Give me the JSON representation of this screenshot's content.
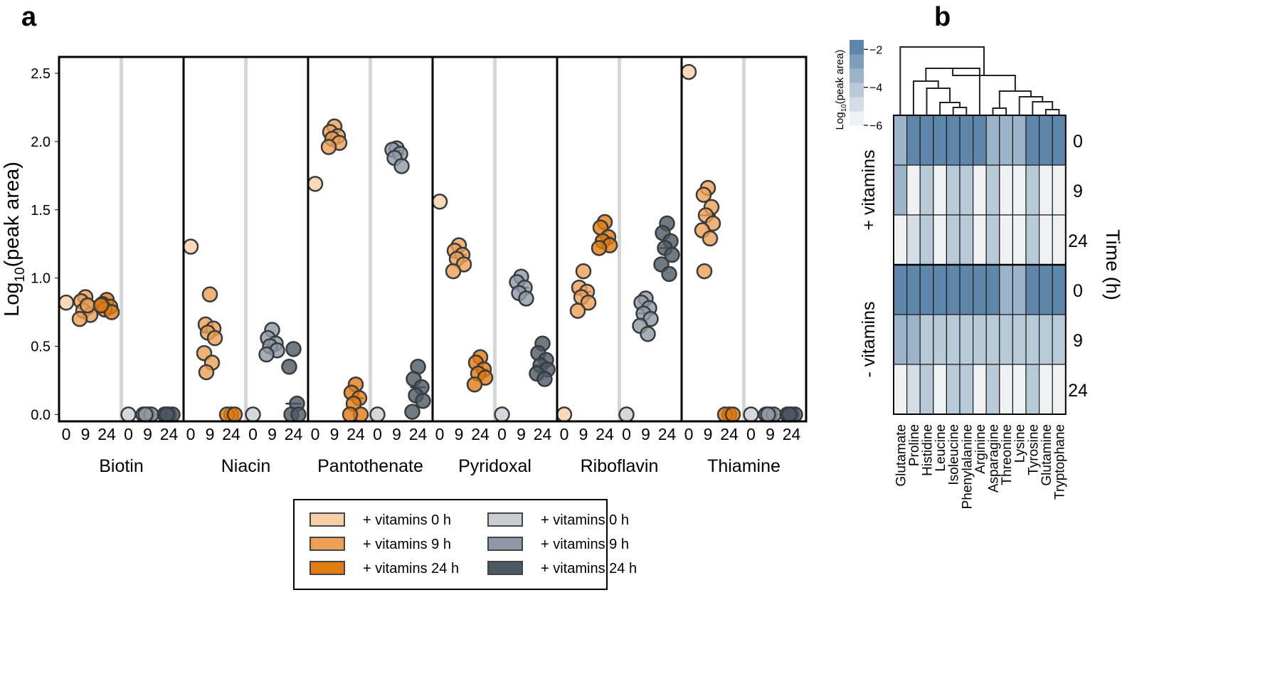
{
  "panels": {
    "a": "a",
    "b": "b"
  },
  "chart_data": [
    {
      "type": "scatter",
      "title": "",
      "ylabel_main": "Log",
      "ylabel_sub": "10",
      "ylabel_rest": "(peak area)",
      "ylim": [
        -0.05,
        2.62
      ],
      "yticks": [
        0.0,
        0.5,
        1.0,
        1.5,
        2.0,
        2.5
      ],
      "ytick_labels": [
        "0.0",
        "0.5",
        "1.0",
        "1.5",
        "2.0",
        "2.5"
      ],
      "time_labels": [
        "0",
        "9",
        "24"
      ],
      "groups": [
        "+ vitamins",
        "- vitamins"
      ],
      "colors": {
        "plus_0": "#f5cfa6",
        "plus_9": "#eca055",
        "plus_24": "#e07b12",
        "minus_0": "#c9ced3",
        "minus_9": "#8d9aa6",
        "minus_24": "#4b5967"
      },
      "legend": {
        "position": "bottom-center",
        "entries": [
          {
            "label": "+ vitamins 0 h",
            "color_key": "plus_0"
          },
          {
            "label": "+ vitamins 9 h",
            "color_key": "plus_9"
          },
          {
            "label": "+ vitamins 24 h",
            "color_key": "plus_24"
          },
          {
            "label": "+ vitamins 0 h",
            "color_key": "minus_0"
          },
          {
            "label": "+ vitamins 9 h",
            "color_key": "minus_9"
          },
          {
            "label": "+ vitamins 24 h",
            "color_key": "minus_24"
          }
        ]
      },
      "facets": [
        {
          "name": "Biotin",
          "plus": {
            "t0": [
              0.82
            ],
            "t9": [
              0.86,
              0.83,
              0.79,
              0.76,
              0.73,
              0.7,
              0.8
            ],
            "t24": [
              0.84,
              0.81,
              0.79,
              0.77,
              0.75,
              0.8
            ]
          },
          "minus": {
            "t0": [
              0.0
            ],
            "t9": [
              0.0,
              0.0,
              0.0,
              0.0
            ],
            "t24": [
              0.0,
              0.0,
              0.0,
              0.0
            ]
          }
        },
        {
          "name": "Niacin",
          "plus": {
            "t0": [
              1.23
            ],
            "t9": [
              0.88,
              0.66,
              0.63,
              0.6,
              0.56,
              0.45,
              0.38,
              0.31
            ],
            "t24": [
              0.0,
              0.0,
              0.0
            ]
          },
          "minus": {
            "t0": [
              0.0
            ],
            "t9": [
              0.62,
              0.56,
              0.52,
              0.5,
              0.47,
              0.44
            ],
            "t24": [
              0.48,
              0.35,
              0.08,
              0.0,
              0.0
            ]
          }
        },
        {
          "name": "Pantothenate",
          "plus": {
            "t0": [
              1.69
            ],
            "t9": [
              2.11,
              2.07,
              2.04,
              2.02,
              1.99,
              1.96
            ],
            "t24": [
              0.22,
              0.16,
              0.12,
              0.08,
              0.0,
              0.0
            ]
          },
          "minus": {
            "t0": [
              0.0
            ],
            "t9": [
              1.95,
              1.94,
              1.91,
              1.88,
              1.82
            ],
            "t24": [
              0.35,
              0.26,
              0.2,
              0.14,
              0.1,
              0.02
            ]
          }
        },
        {
          "name": "Pyridoxal",
          "plus": {
            "t0": [
              1.56
            ],
            "t9": [
              1.24,
              1.2,
              1.17,
              1.14,
              1.1,
              1.05
            ],
            "t24": [
              0.42,
              0.38,
              0.33,
              0.3,
              0.27,
              0.22
            ]
          },
          "minus": {
            "t0": [
              0.0
            ],
            "t9": [
              1.01,
              0.97,
              0.93,
              0.89,
              0.85
            ],
            "t24": [
              0.52,
              0.45,
              0.4,
              0.36,
              0.33,
              0.3,
              0.26
            ]
          }
        },
        {
          "name": "Riboflavin",
          "plus": {
            "t0": [
              0.0
            ],
            "t9": [
              1.05,
              0.93,
              0.9,
              0.86,
              0.82,
              0.76
            ],
            "t24": [
              1.41,
              1.37,
              1.3,
              1.27,
              1.24,
              1.22
            ]
          },
          "minus": {
            "t0": [
              0.0
            ],
            "t9": [
              0.85,
              0.82,
              0.78,
              0.74,
              0.7,
              0.65,
              0.59
            ],
            "t24": [
              1.4,
              1.33,
              1.27,
              1.22,
              1.17,
              1.1,
              1.03
            ]
          }
        },
        {
          "name": "Thiamine",
          "plus": {
            "t0": [
              2.51
            ],
            "t9": [
              1.66,
              1.61,
              1.52,
              1.46,
              1.4,
              1.35,
              1.29,
              1.05
            ],
            "t24": [
              0.0,
              0.0,
              0.0
            ]
          },
          "minus": {
            "t0": [
              0.0
            ],
            "t9": [
              0.0,
              0.0,
              0.0,
              0.0
            ],
            "t24": [
              0.0,
              0.0,
              0.0,
              0.0
            ]
          }
        }
      ]
    },
    {
      "type": "heatmap",
      "colorbar_title_main": "Log",
      "colorbar_title_sub": "10",
      "colorbar_title_rest": "(peak area)",
      "colorbar_range": [
        -6,
        -1.5
      ],
      "colorbar_ticks": [
        -2,
        -4,
        -6
      ],
      "colorbar_tick_labels": [
        "−2",
        "−4",
        "−6"
      ],
      "colorbar_colors": [
        "#f0f1f3",
        "#d4dde5",
        "#b8c9d7",
        "#9cb4c9",
        "#7e9fbb",
        "#5e86ab"
      ],
      "columns": [
        "Glutamate",
        "Proline",
        "Histidine",
        "Leucine",
        "Isoleucine",
        "Phenylalanine",
        "Arginine",
        "Asparagine",
        "Threonine",
        "Lysine",
        "Tyrosine",
        "Glutamine",
        "Tryptophane"
      ],
      "rows": [
        "0",
        "9",
        "24",
        "0",
        "9",
        "24"
      ],
      "row_groups": [
        "+ vitamins",
        "- vitamins"
      ],
      "ylabel_right": "Time (h)",
      "values": [
        [
          -3.3,
          -1.6,
          -1.6,
          -1.6,
          -1.6,
          -1.6,
          -1.6,
          -3.3,
          -3.5,
          -3.5,
          -1.6,
          -1.6,
          -1.6
        ],
        [
          -3.3,
          -5.9,
          -3.8,
          -5.9,
          -4.2,
          -4.4,
          -5.9,
          -3.8,
          -5.9,
          -5.9,
          -4.3,
          -5.9,
          -5.9
        ],
        [
          -5.9,
          -4.9,
          -4.1,
          -5.9,
          -4.4,
          -4.4,
          -5.9,
          -4.3,
          -5.9,
          -5.9,
          -4.3,
          -5.9,
          -5.9
        ],
        [
          -1.6,
          -1.6,
          -1.6,
          -1.6,
          -1.6,
          -1.6,
          -1.6,
          -1.6,
          -3.5,
          -3.5,
          -1.6,
          -1.6,
          -1.6
        ],
        [
          -3.3,
          -3.3,
          -4.1,
          -4.3,
          -4.5,
          -4.4,
          -4.0,
          -3.8,
          -4.0,
          -4.0,
          -4.3,
          -4.5,
          -4.5
        ],
        [
          -5.9,
          -4.9,
          -4.1,
          -5.9,
          -4.4,
          -4.4,
          -5.9,
          -4.3,
          -5.9,
          -5.9,
          -4.3,
          -5.9,
          -5.9
        ]
      ]
    }
  ]
}
